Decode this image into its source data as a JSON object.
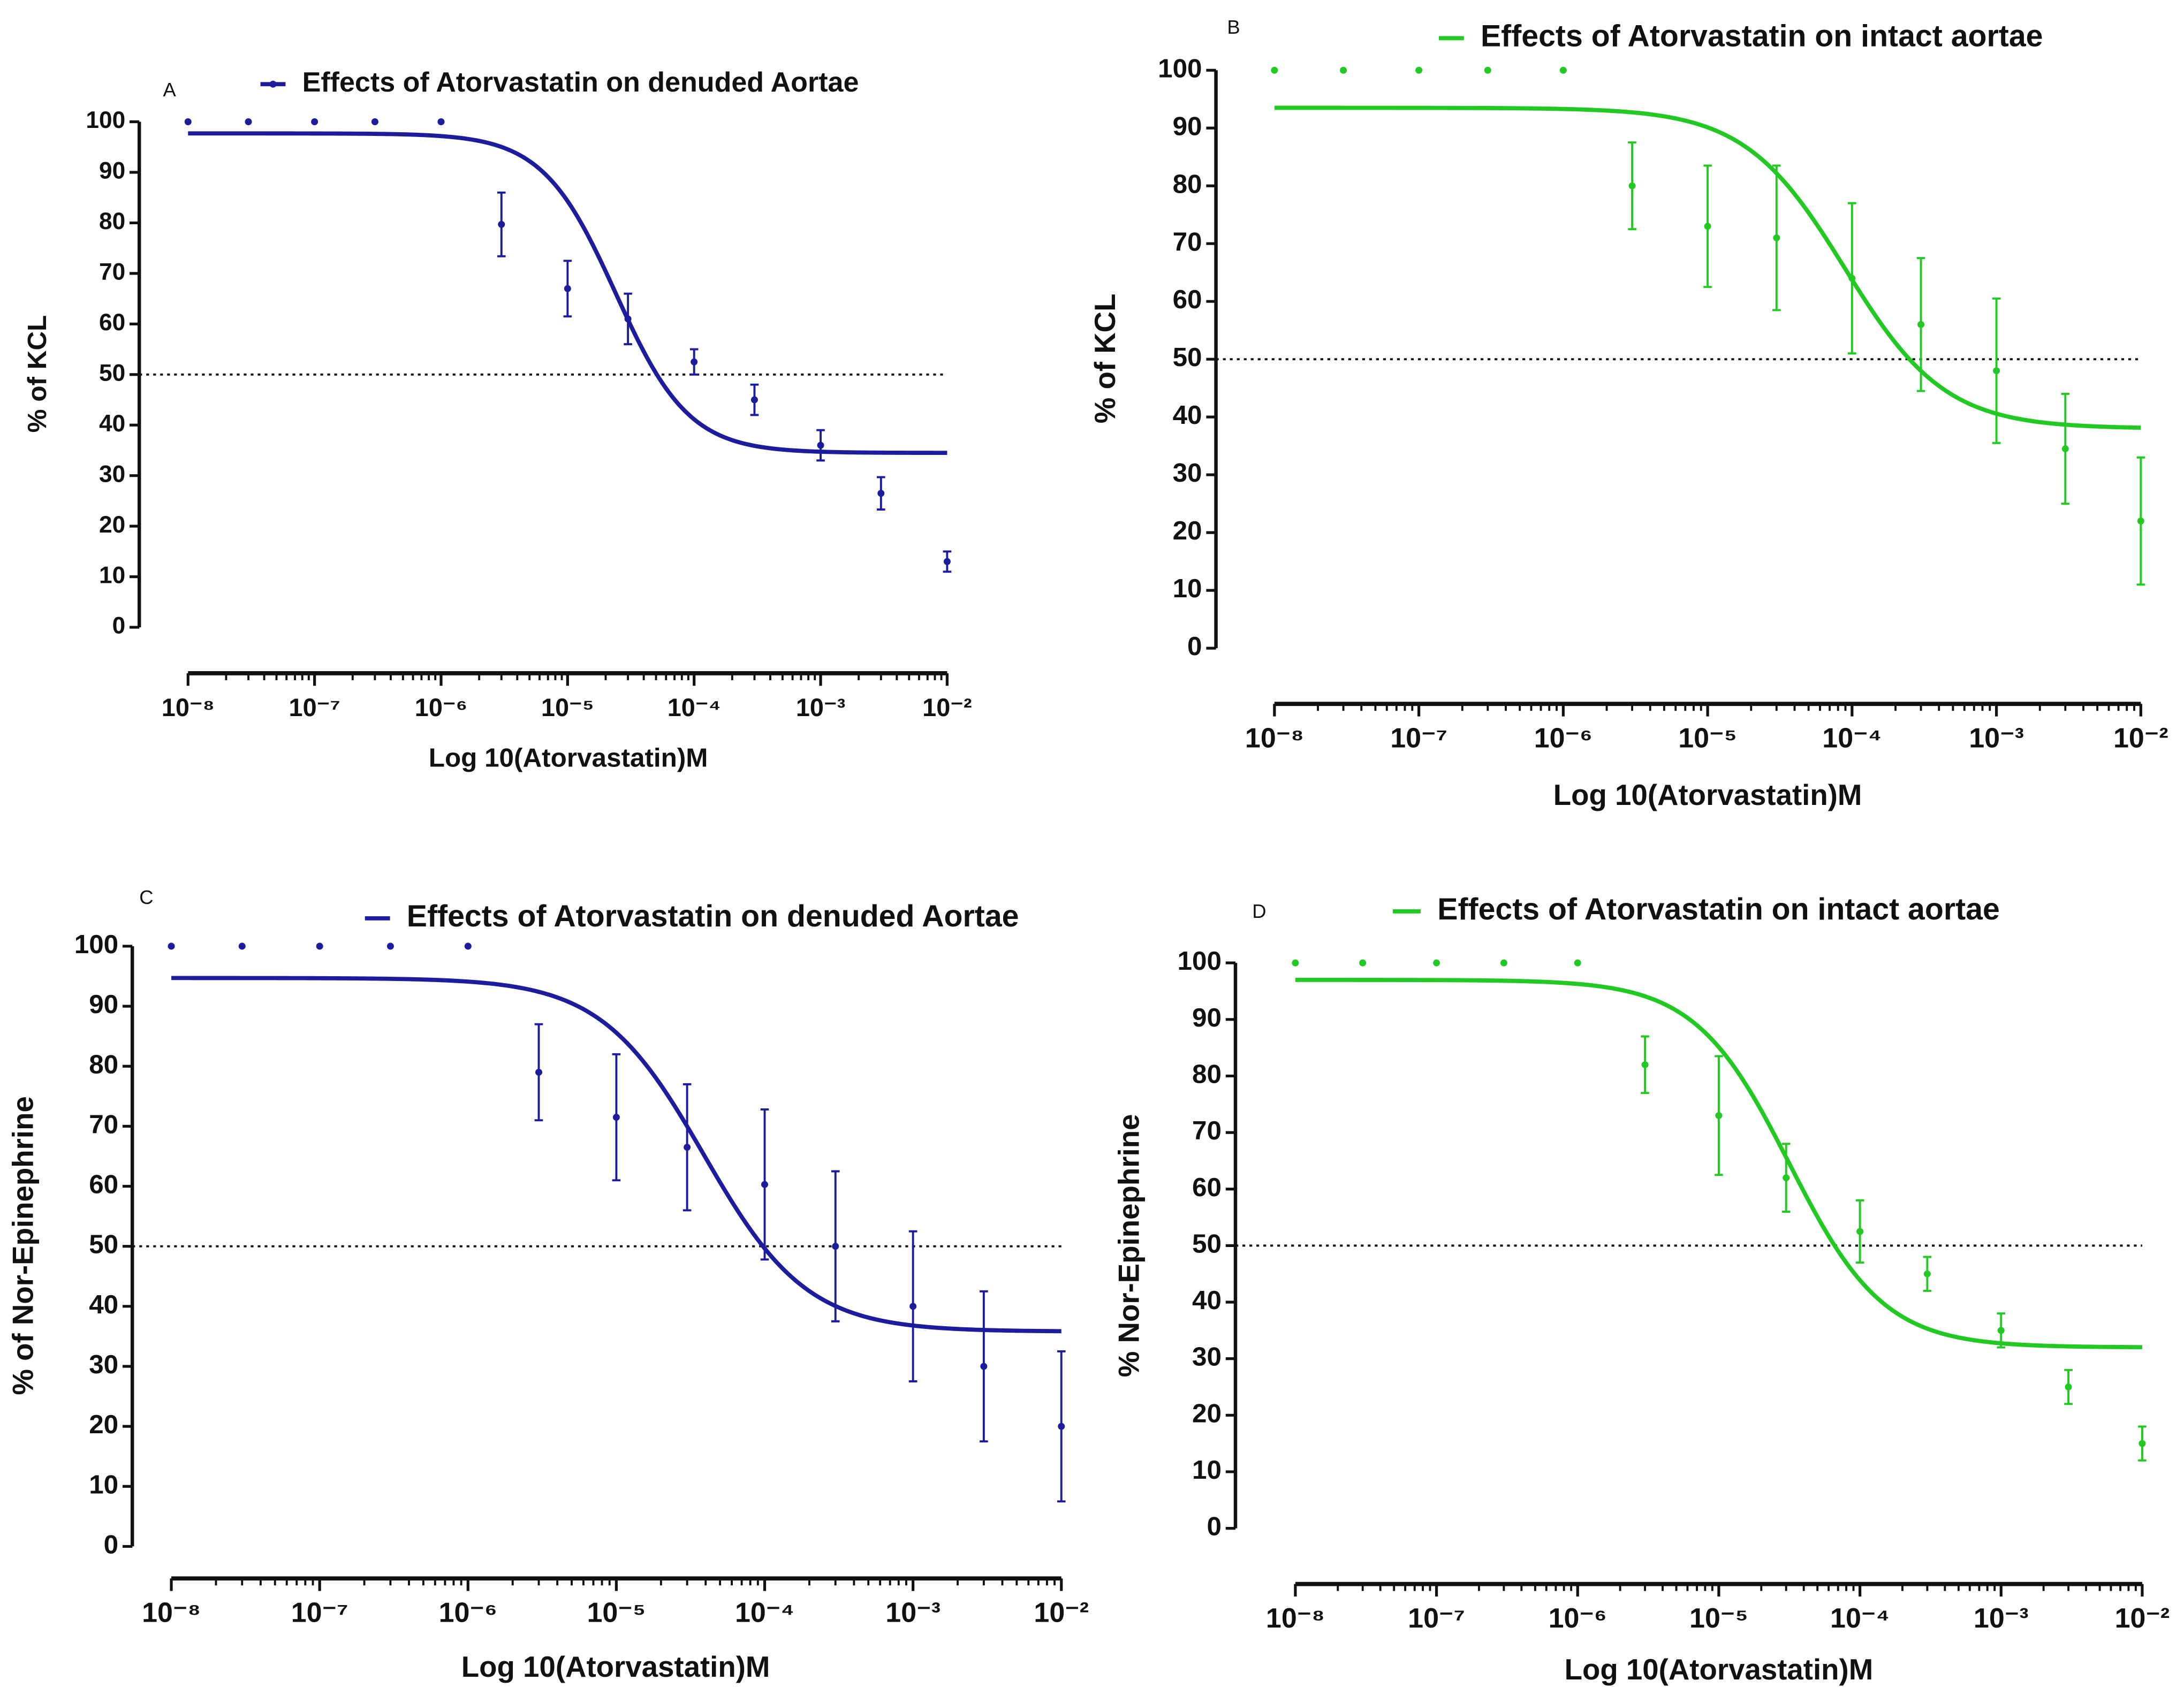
{
  "chart_data": [
    {
      "type": "scatter",
      "panel": "A",
      "xlog": true,
      "xlim": [
        1e-08,
        0.01
      ],
      "xticks": [
        {
          "value": 1e-08,
          "label": "10⁻⁸"
        },
        {
          "value": 1e-07,
          "label": "10⁻⁷"
        },
        {
          "value": 1e-06,
          "label": "10⁻⁶"
        },
        {
          "value": 1e-05,
          "label": "10⁻⁵"
        },
        {
          "value": 0.0001,
          "label": "10⁻⁴"
        },
        {
          "value": 0.001,
          "label": "10⁻³"
        },
        {
          "value": 0.01,
          "label": "10⁻²"
        }
      ],
      "ylim": [
        0,
        100
      ],
      "yticks": [
        0,
        10,
        20,
        30,
        40,
        50,
        60,
        70,
        80,
        90,
        100
      ],
      "xlabel": "Log 10(Atorvastatin)M",
      "ylabel": "% of KCL",
      "refline": 50,
      "legend_marker": true,
      "x": [
        1e-08,
        3e-08,
        1e-07,
        3e-07,
        1e-06,
        3e-06,
        1e-05,
        3e-05,
        0.0001,
        0.0003,
        0.001,
        0.003,
        0.01
      ],
      "series": [
        {
          "name": "Effects of Atorvastatin on denuded Aortae",
          "color": "#1c1c9c",
          "values": [
            100,
            100,
            100,
            100,
            100,
            79.7,
            67,
            61,
            52.5,
            45,
            36,
            26.5,
            13
          ],
          "errors": [
            0,
            0,
            0,
            0,
            0,
            6.3,
            5.5,
            5,
            2.5,
            3,
            3,
            3.2,
            2
          ],
          "fit": {
            "top": 97.7,
            "bottom": 34.5,
            "log_ec50": -4.62,
            "hill": 1.5
          }
        }
      ]
    },
    {
      "type": "scatter",
      "panel": "B",
      "xlog": true,
      "xlim": [
        1e-08,
        0.01
      ],
      "xticks": [
        {
          "value": 1e-08,
          "label": "10⁻⁸"
        },
        {
          "value": 1e-07,
          "label": "10⁻⁷"
        },
        {
          "value": 1e-06,
          "label": "10⁻⁶"
        },
        {
          "value": 1e-05,
          "label": "10⁻⁵"
        },
        {
          "value": 0.0001,
          "label": "10⁻⁴"
        },
        {
          "value": 0.001,
          "label": "10⁻³"
        },
        {
          "value": 0.01,
          "label": "10⁻²"
        }
      ],
      "ylim": [
        0,
        100
      ],
      "yticks": [
        0,
        10,
        20,
        30,
        40,
        50,
        60,
        70,
        80,
        90,
        100
      ],
      "xlabel": "Log 10(Atorvastatin)M",
      "ylabel": "% of KCL",
      "refline": 50,
      "legend_marker": false,
      "x": [
        1e-08,
        3e-08,
        1e-07,
        3e-07,
        1e-06,
        3e-06,
        1e-05,
        3e-05,
        0.0001,
        0.0003,
        0.001,
        0.003,
        0.01
      ],
      "series": [
        {
          "name": "Effects of Atorvastatin on intact aortae",
          "color": "#22c922",
          "values": [
            100,
            100,
            100,
            100,
            100,
            80,
            73,
            71,
            64,
            56,
            48,
            34.5,
            22
          ],
          "errors": [
            0,
            0,
            0,
            0,
            0,
            7.5,
            10.5,
            12.5,
            13,
            11.5,
            12.5,
            9.5,
            11
          ],
          "fit": {
            "top": 93.5,
            "bottom": 38,
            "log_ec50": -4.05,
            "hill": 1.25
          }
        }
      ]
    },
    {
      "type": "scatter",
      "panel": "C",
      "xlog": true,
      "xlim": [
        1e-08,
        0.01
      ],
      "xticks": [
        {
          "value": 1e-08,
          "label": "10⁻⁸"
        },
        {
          "value": 1e-07,
          "label": "10⁻⁷"
        },
        {
          "value": 1e-06,
          "label": "10⁻⁶"
        },
        {
          "value": 1e-05,
          "label": "10⁻⁵"
        },
        {
          "value": 0.0001,
          "label": "10⁻⁴"
        },
        {
          "value": 0.001,
          "label": "10⁻³"
        },
        {
          "value": 0.01,
          "label": "10⁻²"
        }
      ],
      "ylim": [
        0,
        100
      ],
      "yticks": [
        0,
        10,
        20,
        30,
        40,
        50,
        60,
        70,
        80,
        90,
        100
      ],
      "xlabel": "Log 10(Atorvastatin)M",
      "ylabel": "% of Nor-Epinephrine",
      "refline": 50,
      "legend_marker": false,
      "x": [
        1e-08,
        3e-08,
        1e-07,
        3e-07,
        1e-06,
        3e-06,
        1e-05,
        3e-05,
        0.0001,
        0.0003,
        0.001,
        0.003,
        0.01
      ],
      "series": [
        {
          "name": "Effects of Atorvastatin on denuded Aortae",
          "color": "#1c1c9c",
          "values": [
            100,
            100,
            100,
            100,
            100,
            79,
            71.5,
            66.5,
            60.3,
            50,
            40,
            30,
            20
          ],
          "errors": [
            0,
            0,
            0,
            0,
            0,
            8,
            10.5,
            10.5,
            12.5,
            12.5,
            12.5,
            12.5,
            12.5
          ],
          "fit": {
            "top": 94.7,
            "bottom": 35.8,
            "log_ec50": -4.41,
            "hill": 1.25
          }
        }
      ]
    },
    {
      "type": "scatter",
      "panel": "D",
      "xlog": true,
      "xlim": [
        1e-08,
        0.01
      ],
      "xticks": [
        {
          "value": 1e-08,
          "label": "10⁻⁸"
        },
        {
          "value": 1e-07,
          "label": "10⁻⁷"
        },
        {
          "value": 1e-06,
          "label": "10⁻⁶"
        },
        {
          "value": 1e-05,
          "label": "10⁻⁵"
        },
        {
          "value": 0.0001,
          "label": "10⁻⁴"
        },
        {
          "value": 0.001,
          "label": "10⁻³"
        },
        {
          "value": 0.01,
          "label": "10⁻²"
        }
      ],
      "ylim": [
        0,
        100
      ],
      "yticks": [
        0,
        10,
        20,
        30,
        40,
        50,
        60,
        70,
        80,
        90,
        100
      ],
      "xlabel": "Log 10(Atorvastatin)M",
      "ylabel": "% Nor-Epinephrine",
      "refline": 50,
      "legend_marker": false,
      "x": [
        1e-08,
        3e-08,
        1e-07,
        3e-07,
        1e-06,
        3e-06,
        1e-05,
        3e-05,
        0.0001,
        0.0003,
        0.001,
        0.003,
        0.01
      ],
      "series": [
        {
          "name": "Effects of Atorvastatin on intact aortae",
          "color": "#22c922",
          "values": [
            100,
            100,
            100,
            100,
            100,
            82,
            73,
            62,
            52.5,
            45,
            35,
            25,
            15
          ],
          "errors": [
            0,
            0,
            0,
            0,
            0,
            5,
            10.5,
            6,
            5.5,
            3,
            3,
            3,
            3
          ],
          "fit": {
            "top": 97,
            "bottom": 32,
            "log_ec50": -4.5,
            "hill": 1.3
          }
        }
      ]
    }
  ]
}
